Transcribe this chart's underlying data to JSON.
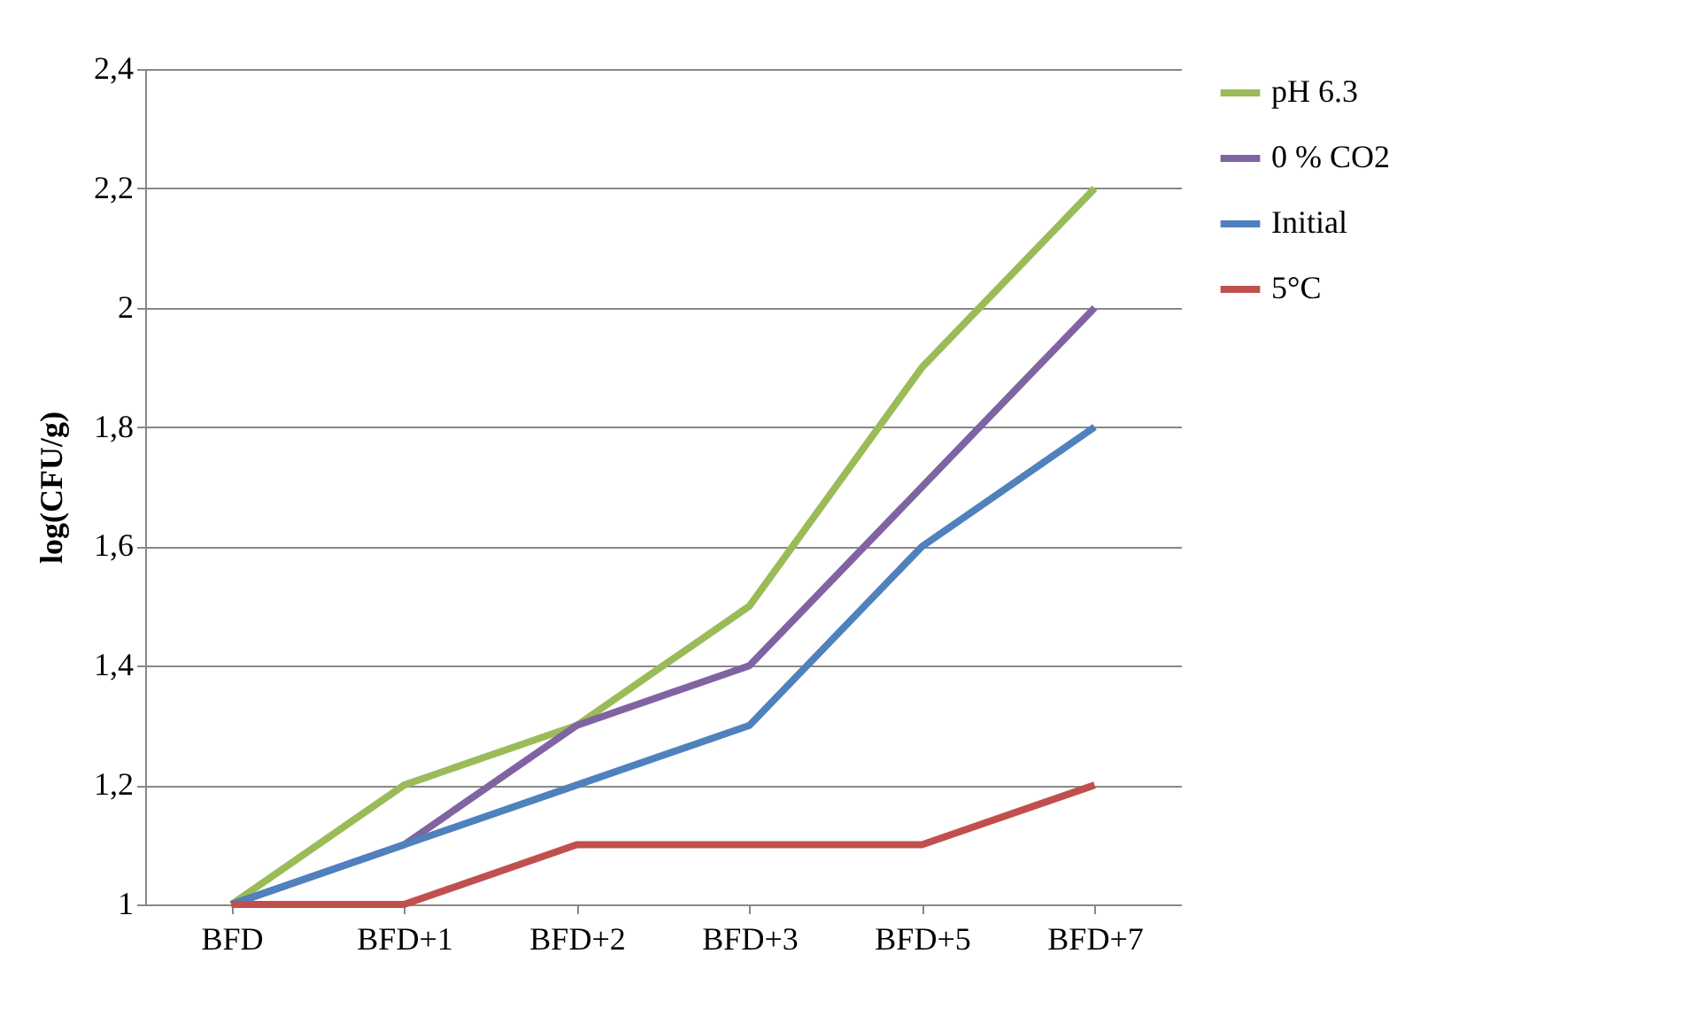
{
  "chart_data": {
    "type": "line",
    "ylabel": "log(CFU/g)",
    "categories": [
      "BFD",
      "BFD+1",
      "BFD+2",
      "BFD+3",
      "BFD+5",
      "BFD+7"
    ],
    "series": [
      {
        "name": "pH 6.3",
        "color": "#9bbb59",
        "values": [
          1,
          1.2,
          1.3,
          1.5,
          1.9,
          2.2
        ]
      },
      {
        "name": "0 % CO2",
        "color": "#8064a2",
        "values": [
          1,
          1.1,
          1.3,
          1.4,
          1.7,
          2.0
        ]
      },
      {
        "name": "Initial",
        "color": "#4f81bd",
        "values": [
          1,
          1.1,
          1.2,
          1.3,
          1.6,
          1.8
        ]
      },
      {
        "name": "5°C",
        "color": "#c0504d",
        "values": [
          1,
          1,
          1.1,
          1.1,
          1.1,
          1.2
        ]
      }
    ],
    "ylim": [
      1,
      2.4
    ],
    "yticks": [
      {
        "value": 1,
        "label": "1"
      },
      {
        "value": 1.2,
        "label": "1,2"
      },
      {
        "value": 1.4,
        "label": "1,4"
      },
      {
        "value": 1.6,
        "label": "1,6"
      },
      {
        "value": 1.8,
        "label": "1,8"
      },
      {
        "value": 2,
        "label": "2"
      },
      {
        "value": 2.2,
        "label": "2,2"
      },
      {
        "value": 2.4,
        "label": "2,4"
      }
    ],
    "grid": "y",
    "legend": "right",
    "marker": "none",
    "line_style": "solid"
  }
}
